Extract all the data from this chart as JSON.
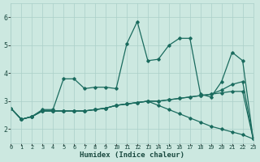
{
  "xlabel": "Humidex (Indice chaleur)",
  "xlim": [
    0,
    23
  ],
  "ylim": [
    1.5,
    6.5
  ],
  "xticks": [
    0,
    1,
    2,
    3,
    4,
    5,
    6,
    7,
    8,
    9,
    10,
    11,
    12,
    13,
    14,
    15,
    16,
    17,
    18,
    19,
    20,
    21,
    22,
    23
  ],
  "yticks": [
    2,
    3,
    4,
    5,
    6
  ],
  "background_color": "#cce8e0",
  "grid_color": "#aacfc8",
  "line_color": "#1a6b5e",
  "tick_color": "#1a4a40",
  "lines": [
    {
      "x": [
        0,
        1,
        2,
        3,
        4,
        5,
        6,
        7,
        8,
        9,
        10,
        11,
        12,
        13,
        14,
        15,
        16,
        17,
        18,
        19,
        20,
        21,
        22,
        23
      ],
      "y": [
        2.75,
        2.35,
        2.45,
        2.7,
        2.7,
        3.8,
        3.8,
        3.45,
        3.5,
        3.5,
        3.45,
        5.05,
        5.85,
        4.45,
        4.5,
        5.0,
        5.25,
        5.25,
        3.25,
        3.15,
        3.7,
        4.75,
        4.45,
        1.65
      ]
    },
    {
      "x": [
        0,
        1,
        2,
        3,
        4,
        5,
        6,
        7,
        8,
        9,
        10,
        11,
        12,
        13,
        14,
        15,
        16,
        17,
        18,
        19,
        20,
        21,
        22,
        23
      ],
      "y": [
        2.75,
        2.35,
        2.45,
        2.65,
        2.65,
        2.65,
        2.65,
        2.65,
        2.7,
        2.75,
        2.85,
        2.9,
        2.95,
        3.0,
        3.0,
        3.05,
        3.1,
        3.15,
        3.2,
        3.25,
        3.4,
        3.6,
        3.7,
        1.65
      ]
    },
    {
      "x": [
        0,
        1,
        2,
        3,
        4,
        5,
        6,
        7,
        8,
        9,
        10,
        11,
        12,
        13,
        14,
        15,
        16,
        17,
        18,
        19,
        20,
        21,
        22,
        23
      ],
      "y": [
        2.75,
        2.35,
        2.45,
        2.65,
        2.65,
        2.65,
        2.65,
        2.65,
        2.7,
        2.75,
        2.85,
        2.9,
        2.95,
        3.0,
        3.0,
        3.05,
        3.1,
        3.15,
        3.2,
        3.25,
        3.3,
        3.35,
        3.35,
        1.65
      ]
    },
    {
      "x": [
        0,
        1,
        2,
        3,
        4,
        5,
        6,
        7,
        8,
        9,
        10,
        11,
        12,
        13,
        14,
        15,
        16,
        17,
        18,
        19,
        20,
        21,
        22,
        23
      ],
      "y": [
        2.75,
        2.35,
        2.45,
        2.65,
        2.65,
        2.65,
        2.65,
        2.65,
        2.7,
        2.75,
        2.85,
        2.9,
        2.95,
        3.0,
        2.85,
        2.7,
        2.55,
        2.4,
        2.25,
        2.1,
        2.0,
        1.9,
        1.8,
        1.65
      ]
    }
  ],
  "marker": "D",
  "markersize": 1.8,
  "linewidth": 0.9
}
